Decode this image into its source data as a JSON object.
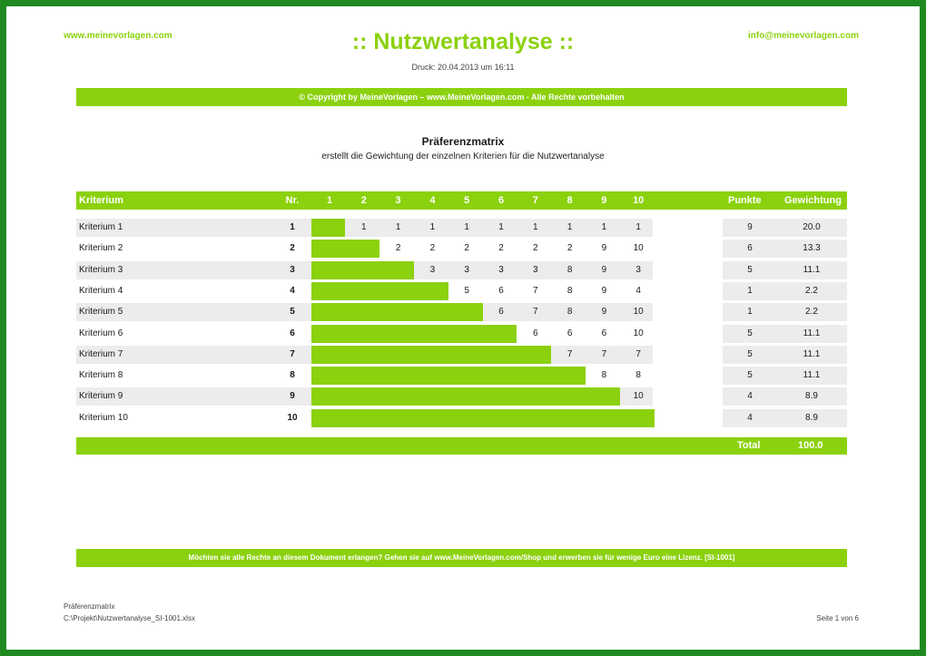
{
  "header": {
    "site_left": "www.meinevorlagen.com",
    "email_right": "info@meinevorlagen.com",
    "title": ":: Nutzwertanalyse ::",
    "print_date": "Druck: 20.04.2013 um 16:11",
    "copyright": "© Copyright by MeineVorlagen – www.MeineVorlagen.com - Alle Rechte vorbehalten"
  },
  "section": {
    "title": "Präferenzmatrix",
    "subtitle": "erstellt die Gewichtung der einzelnen Kriterien für die Nutzwertanalyse"
  },
  "table": {
    "headers": {
      "criterion": "Kriterium",
      "nr": "Nr.",
      "columns": [
        "1",
        "2",
        "3",
        "4",
        "5",
        "6",
        "7",
        "8",
        "9",
        "10"
      ],
      "points": "Punkte",
      "weight": "Gewichtung"
    },
    "rows": [
      {
        "name": "Kriterium 1",
        "nr": "1",
        "values": [
          "1",
          "1",
          "1",
          "1",
          "1",
          "1",
          "1",
          "1",
          "1"
        ],
        "points": "9",
        "weight": "20.0"
      },
      {
        "name": "Kriterium 2",
        "nr": "2",
        "values": [
          "2",
          "2",
          "2",
          "2",
          "2",
          "2",
          "9",
          "10"
        ],
        "points": "6",
        "weight": "13.3"
      },
      {
        "name": "Kriterium 3",
        "nr": "3",
        "values": [
          "3",
          "3",
          "3",
          "3",
          "8",
          "9",
          "3"
        ],
        "points": "5",
        "weight": "11.1"
      },
      {
        "name": "Kriterium 4",
        "nr": "4",
        "values": [
          "5",
          "6",
          "7",
          "8",
          "9",
          "4"
        ],
        "points": "1",
        "weight": "2.2"
      },
      {
        "name": "Kriterium 5",
        "nr": "5",
        "values": [
          "6",
          "7",
          "8",
          "9",
          "10"
        ],
        "points": "1",
        "weight": "2.2"
      },
      {
        "name": "Kriterium 6",
        "nr": "6",
        "values": [
          "6",
          "6",
          "6",
          "10"
        ],
        "points": "5",
        "weight": "11.1"
      },
      {
        "name": "Kriterium 7",
        "nr": "7",
        "values": [
          "7",
          "7",
          "7"
        ],
        "points": "5",
        "weight": "11.1"
      },
      {
        "name": "Kriterium 8",
        "nr": "8",
        "values": [
          "8",
          "8"
        ],
        "points": "5",
        "weight": "11.1"
      },
      {
        "name": "Kriterium 9",
        "nr": "9",
        "values": [
          "10"
        ],
        "points": "4",
        "weight": "8.9"
      },
      {
        "name": "Kriterium 10",
        "nr": "10",
        "values": [],
        "points": "4",
        "weight": "8.9"
      }
    ],
    "total_label": "Total",
    "total_value": "100.0"
  },
  "footer": {
    "notice": "Möchten sie alle Rechte an diesem Dokument erlangen? Gehen sie auf www.MeineVorlagen.com/Shop und erwerben sie für wenige Euro eine Lizenz. [SI-1001]",
    "sheet_name": "Präferenzmatrix",
    "file_path": "C:\\Projekt\\Nutzwertanalyse_SI-1001.xlsx",
    "page": "Seite 1 von 6"
  },
  "colors": {
    "accent": "#8bd10e",
    "frame": "#1f8a1f",
    "row_shade": "#ececec"
  }
}
